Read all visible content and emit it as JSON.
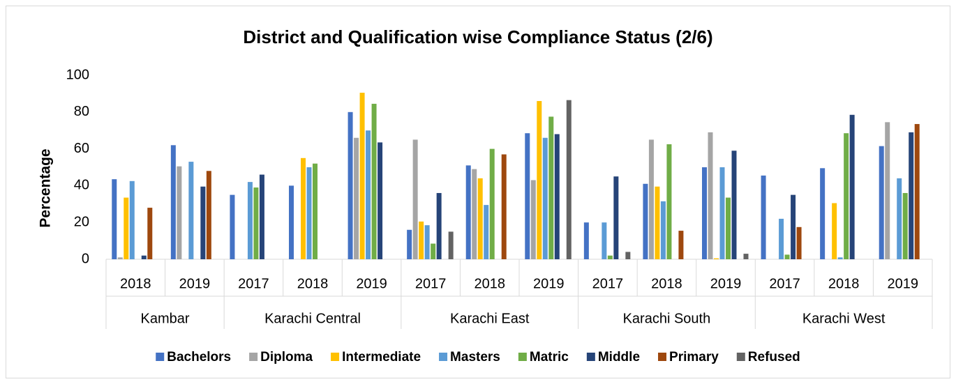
{
  "chart_data": {
    "type": "bar",
    "title": "District and Qualification wise Compliance Status (2/6)",
    "y_label": "Percentage",
    "groups": [
      {
        "label": "Kambar",
        "categories": [
          "2018",
          "2019"
        ]
      },
      {
        "label": "Karachi Central",
        "categories": [
          "2017",
          "2018",
          "2019"
        ]
      },
      {
        "label": "Karachi East",
        "categories": [
          "2017",
          "2018",
          "2019"
        ]
      },
      {
        "label": "Karachi South",
        "categories": [
          "2017",
          "2018",
          "2019"
        ]
      },
      {
        "label": "Karachi West",
        "categories": [
          "2017",
          "2018",
          "2019"
        ]
      }
    ],
    "series": [
      {
        "name": "Bachelors",
        "color": "#4472c4",
        "values": [
          43.5,
          62,
          35,
          40,
          80,
          16,
          51,
          68.5,
          20,
          41,
          50,
          45.5,
          49.5,
          61.5
        ]
      },
      {
        "name": "Diploma",
        "color": "#a5a5a5",
        "values": [
          1,
          50.5,
          0,
          0,
          66,
          65,
          49,
          43,
          0,
          65,
          69,
          0,
          0,
          74.5
        ]
      },
      {
        "name": "Intermediate",
        "color": "#ffc000",
        "values": [
          33.5,
          0,
          0,
          55,
          90.5,
          20.5,
          44,
          86,
          0,
          39.5,
          0.5,
          0,
          30.5,
          0
        ]
      },
      {
        "name": "Masters",
        "color": "#5b9bd5",
        "values": [
          42.5,
          53,
          42,
          50,
          70,
          18.5,
          29.5,
          66,
          20,
          31.5,
          50,
          22,
          1,
          44
        ]
      },
      {
        "name": "Matric",
        "color": "#70ad47",
        "values": [
          0,
          0,
          39,
          52,
          84.5,
          8.5,
          60,
          77.5,
          2,
          62.5,
          33.5,
          2.5,
          68.5,
          36
        ]
      },
      {
        "name": "Middle",
        "color": "#264478",
        "values": [
          2,
          39.5,
          46,
          0,
          63.5,
          36,
          0,
          68,
          45,
          0,
          59,
          35,
          78.5,
          69
        ]
      },
      {
        "name": "Primary",
        "color": "#9e480e",
        "values": [
          28,
          48,
          0,
          0,
          0,
          0,
          57,
          0,
          0,
          15.5,
          0,
          17.5,
          0,
          73.5
        ]
      },
      {
        "name": "Refused",
        "color": "#636363",
        "values": [
          0,
          0,
          0,
          0,
          0,
          15,
          0,
          86.5,
          4,
          0,
          3,
          0,
          0,
          0
        ]
      }
    ],
    "ylim": [
      0,
      100
    ],
    "yticks": [
      0,
      20,
      40,
      60,
      80,
      100
    ],
    "grid": false,
    "legend": "bottom"
  }
}
